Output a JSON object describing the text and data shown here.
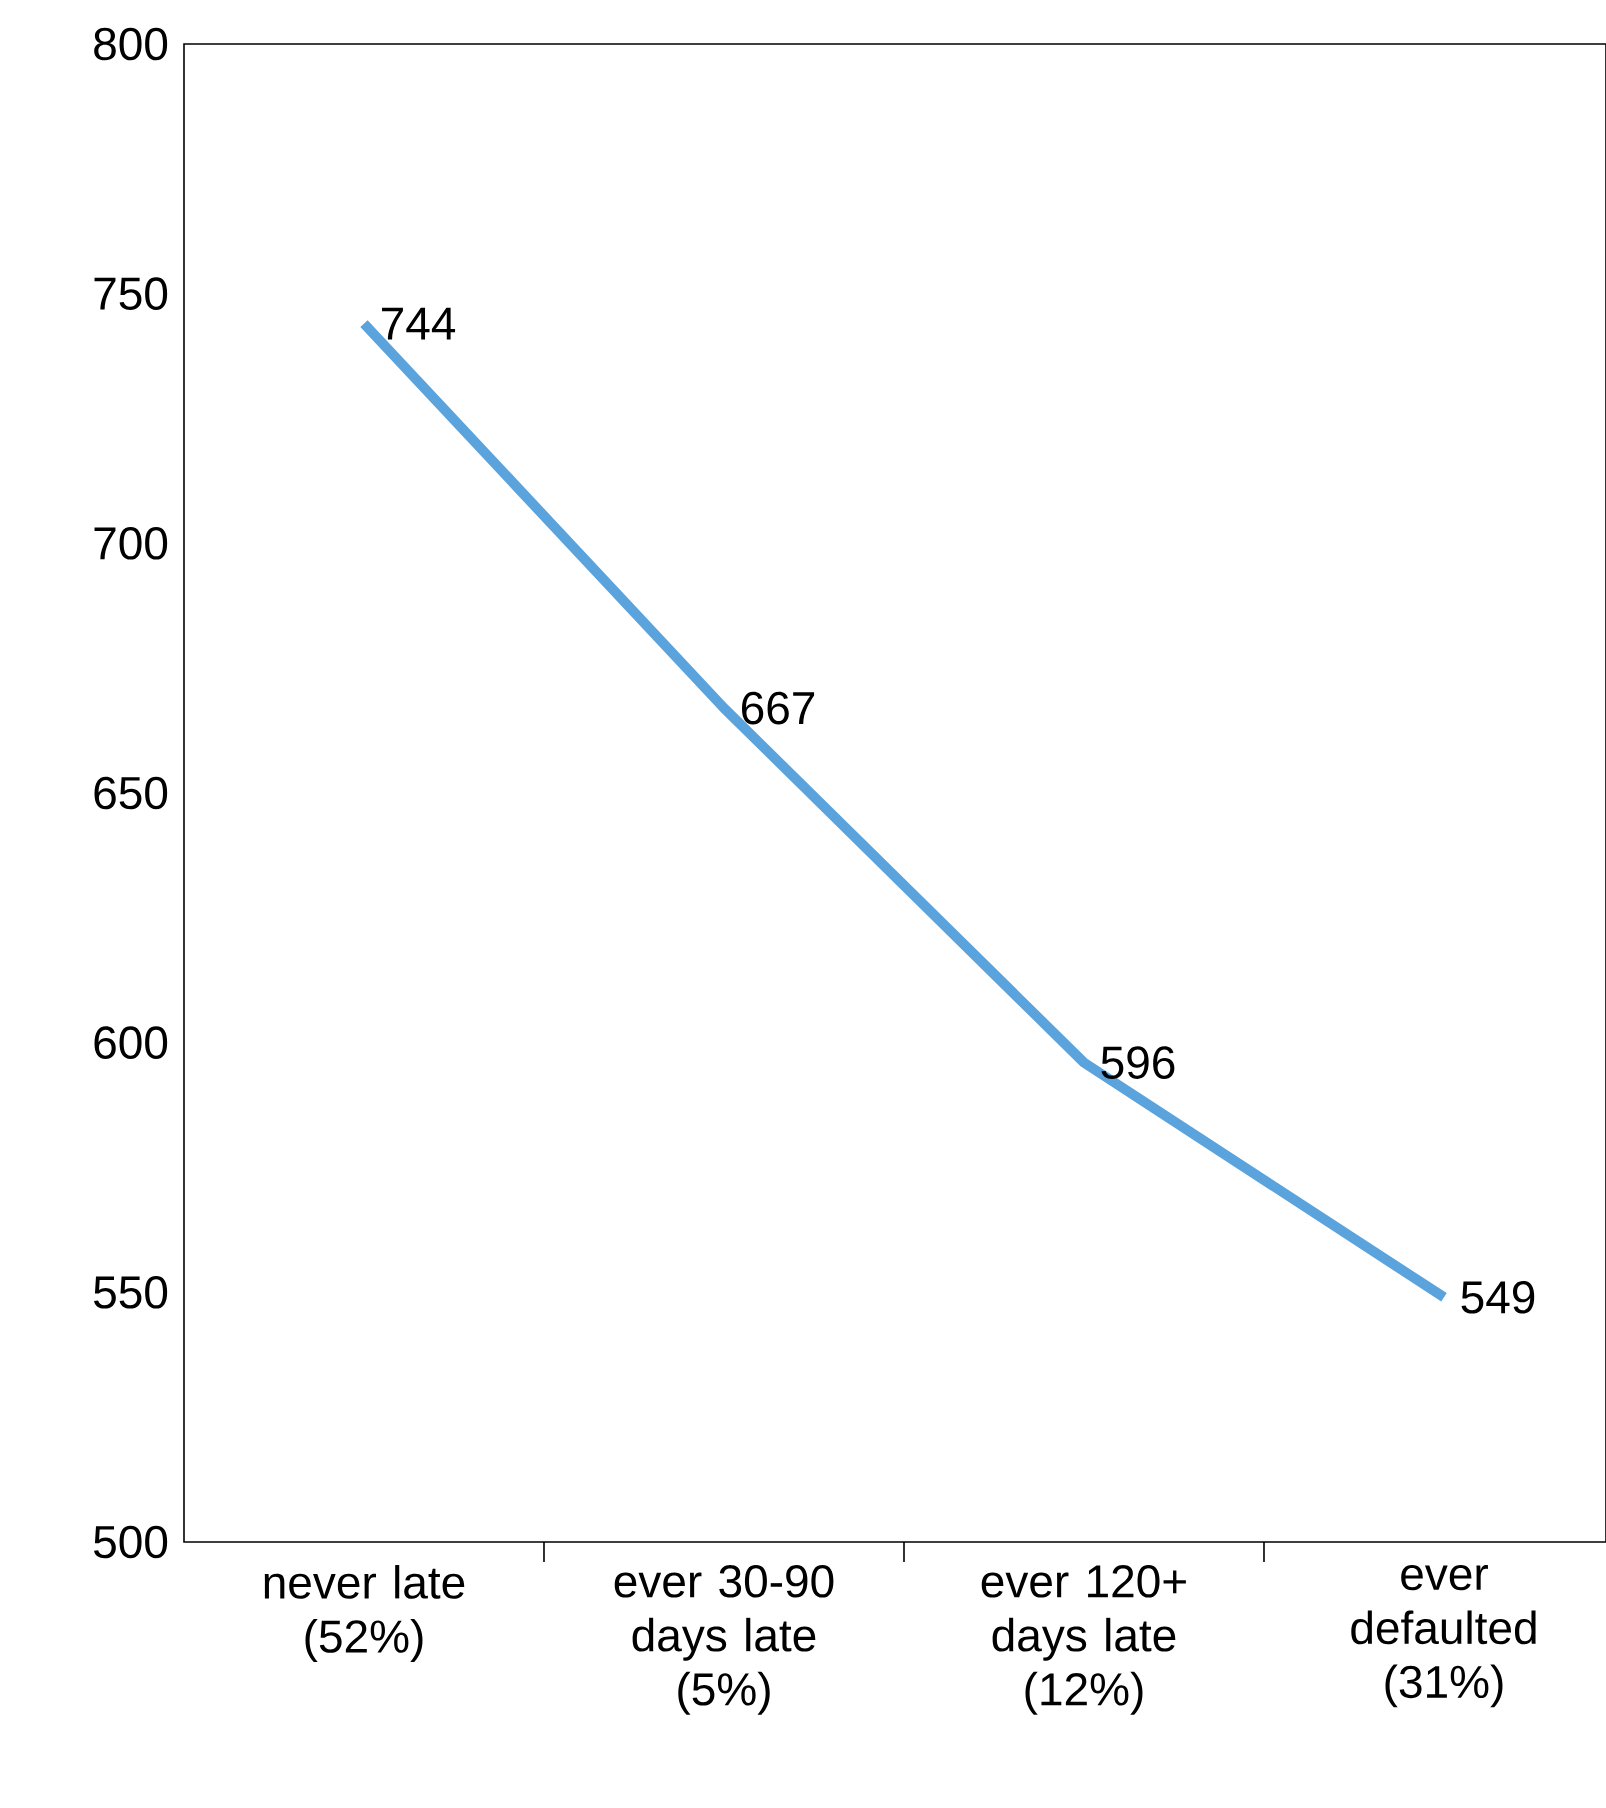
{
  "chart_data": {
    "type": "line",
    "categories": [
      "never late (52%)",
      "ever 30-90 days late (5%)",
      "ever 120+ days late (12%)",
      "ever defaulted (31%)"
    ],
    "values": [
      744,
      667,
      596,
      549
    ],
    "color": "#5ba3dc",
    "ylim": [
      500,
      800
    ],
    "yticks": [
      500,
      550,
      600,
      650,
      700,
      750,
      800
    ],
    "data_labels": true,
    "grid": false,
    "marker": "none",
    "line_style": "solid"
  }
}
